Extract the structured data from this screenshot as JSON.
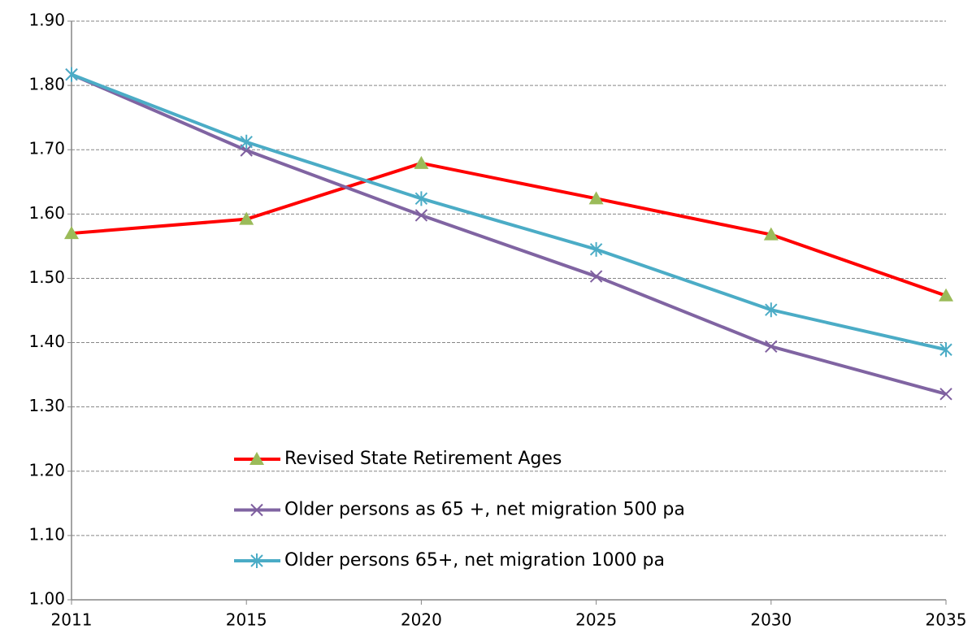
{
  "chart_data": {
    "type": "line",
    "categories": [
      "2011",
      "2015",
      "2020",
      "2025",
      "2030",
      "2035"
    ],
    "series": [
      {
        "name": "Revised State Retirement Ages",
        "color": "#ff0000",
        "marker": "triangle",
        "marker_color": "#9bbb59",
        "values": [
          1.57,
          1.592,
          1.679,
          1.624,
          1.568,
          1.473
        ]
      },
      {
        "name": "Older persons as 65 +, net migration 500 pa",
        "color": "#8064a2",
        "marker": "x",
        "marker_color": "#7f5f9f",
        "values": [
          1.817,
          1.699,
          1.598,
          1.503,
          1.394,
          1.32
        ]
      },
      {
        "name": "Older persons 65+, net migration 1000 pa",
        "color": "#4bacc6",
        "marker": "star",
        "marker_color": "#4bacc6",
        "values": [
          1.817,
          1.712,
          1.624,
          1.545,
          1.451,
          1.389
        ]
      }
    ],
    "ylim": [
      1.0,
      1.9
    ],
    "yticks": [
      {
        "value": 1.0,
        "label": "1.00"
      },
      {
        "value": 1.1,
        "label": "1.10"
      },
      {
        "value": 1.2,
        "label": "1.20"
      },
      {
        "value": 1.3,
        "label": "1.30"
      },
      {
        "value": 1.4,
        "label": "1.40"
      },
      {
        "value": 1.5,
        "label": "1.50"
      },
      {
        "value": 1.6,
        "label": "1.60"
      },
      {
        "value": 1.7,
        "label": "1.70"
      },
      {
        "value": 1.8,
        "label": "1.80"
      },
      {
        "value": 1.9,
        "label": "1.90"
      }
    ],
    "grid": true,
    "legend": "bottom-left"
  }
}
